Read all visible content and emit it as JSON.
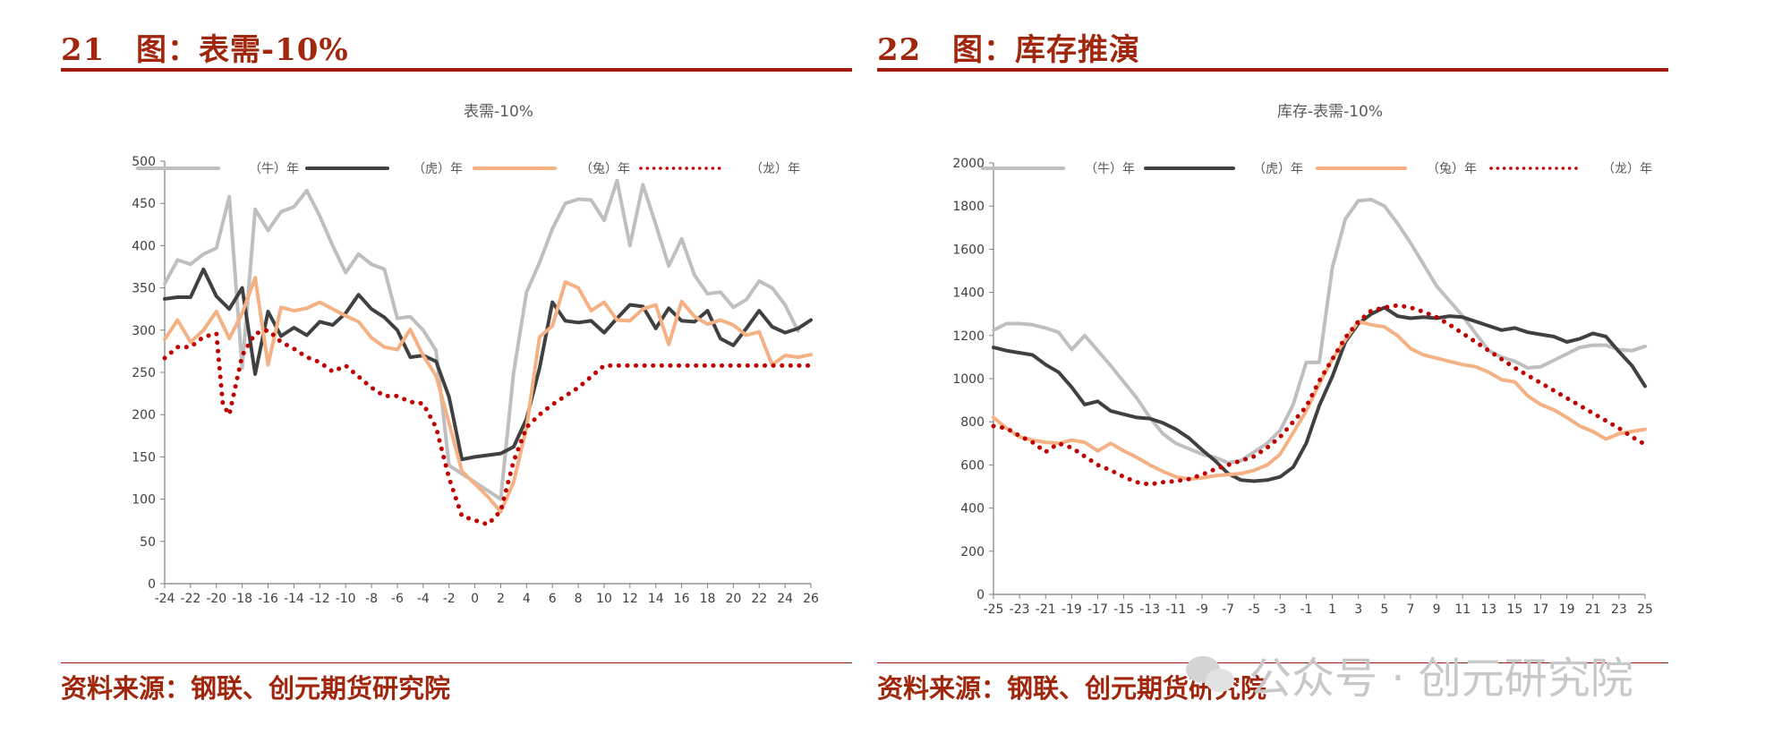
{
  "left": {
    "fig_number": "21",
    "fig_title": "图：表需-10%",
    "source": "资料来源：钢联、创元期货研究院"
  },
  "right": {
    "fig_number": "22",
    "fig_title": "图：库存推演",
    "source": "资料来源：钢联、创元期货研究院"
  },
  "watermark": "公众号 · 创元研究院",
  "chart_data": [
    {
      "type": "line",
      "title": "表需-10%",
      "xlabel": "",
      "ylabel": "",
      "ylim": [
        0,
        500
      ],
      "yticks": [
        0,
        50,
        100,
        150,
        200,
        250,
        300,
        350,
        400,
        450,
        500
      ],
      "xlim": [
        -24,
        26
      ],
      "xticks": [
        -24,
        -22,
        -20,
        -18,
        -16,
        -14,
        -12,
        -10,
        -8,
        -6,
        -4,
        -2,
        0,
        2,
        4,
        6,
        8,
        10,
        12,
        14,
        16,
        18,
        20,
        22,
        24,
        26
      ],
      "grid": false,
      "legend": "top",
      "series": [
        {
          "name": "（牛）年",
          "color": "#bfbfbf",
          "style": "solid",
          "x": [
            -24,
            -23,
            -22,
            -21,
            -20,
            -19,
            -18,
            -17,
            -16,
            -15,
            -14,
            -13,
            -12,
            -11,
            -10,
            -9,
            -8,
            -7,
            -6,
            -5,
            -4,
            -3,
            -2,
            2,
            3,
            4,
            5,
            6,
            7,
            8,
            9,
            10,
            11,
            12,
            13,
            14,
            15,
            16,
            17,
            18,
            19,
            20,
            21,
            22,
            23,
            24,
            25
          ],
          "values": [
            355,
            383,
            378,
            390,
            397,
            458,
            255,
            443,
            418,
            440,
            446,
            465,
            435,
            400,
            368,
            390,
            378,
            372,
            314,
            316,
            300,
            276,
            140,
            100,
            250,
            345,
            380,
            420,
            450,
            455,
            454,
            430,
            477,
            400,
            472,
            425,
            376,
            408,
            365,
            343,
            345,
            327,
            336,
            358,
            350,
            330,
            299
          ]
        },
        {
          "name": "（虎）年",
          "color": "#404040",
          "style": "solid",
          "x": [
            -24,
            -23,
            -22,
            -21,
            -20,
            -19,
            -18,
            -17,
            -16,
            -15,
            -14,
            -13,
            -12,
            -11,
            -10,
            -9,
            -8,
            -7,
            -6,
            -5,
            -4,
            -3,
            -2,
            -1,
            0,
            1,
            2,
            3,
            4,
            5,
            6,
            7,
            8,
            9,
            10,
            11,
            12,
            13,
            14,
            15,
            16,
            17,
            18,
            19,
            20,
            21,
            22,
            23,
            24,
            25,
            26
          ],
          "values": [
            337,
            339,
            339,
            372,
            340,
            325,
            350,
            248,
            322,
            293,
            303,
            294,
            310,
            306,
            320,
            342,
            325,
            315,
            300,
            268,
            270,
            263,
            221,
            147,
            150,
            152,
            154,
            162,
            195,
            255,
            333,
            311,
            309,
            311,
            297,
            314,
            330,
            328,
            302,
            326,
            311,
            310,
            323,
            290,
            282,
            302,
            323,
            304,
            297,
            302,
            312
          ]
        },
        {
          "name": "（兔）年",
          "color": "#f4b183",
          "style": "solid",
          "x": [
            -24,
            -23,
            -22,
            -21,
            -20,
            -19,
            -18,
            -17,
            -16,
            -15,
            -14,
            -13,
            -12,
            -11,
            -10,
            -9,
            -8,
            -7,
            -6,
            -5,
            -4,
            -3,
            -2,
            -1,
            0,
            1,
            2,
            3,
            4,
            5,
            6,
            7,
            8,
            9,
            10,
            11,
            12,
            13,
            14,
            15,
            16,
            17,
            18,
            19,
            20,
            21,
            22,
            23,
            24,
            25,
            26
          ],
          "values": [
            289,
            312,
            286,
            300,
            322,
            290,
            320,
            362,
            259,
            327,
            323,
            326,
            333,
            325,
            317,
            310,
            291,
            280,
            277,
            301,
            270,
            246,
            190,
            133,
            118,
            103,
            85,
            120,
            185,
            292,
            305,
            357,
            350,
            323,
            333,
            312,
            311,
            325,
            330,
            283,
            334,
            316,
            307,
            312,
            306,
            294,
            298,
            259,
            270,
            268,
            271
          ]
        },
        {
          "name": "（龙）年",
          "color": "#c00000",
          "style": "dotted",
          "x": [
            -24,
            -23,
            -22,
            -21,
            -20,
            -19.5,
            -19,
            -18,
            -17,
            -16,
            -15,
            -14,
            -13,
            -12,
            -11,
            -10,
            -9,
            -8,
            -7,
            -6,
            -5,
            -4,
            -3,
            -2,
            -1,
            0,
            1,
            2,
            3,
            4,
            5,
            6,
            7,
            8,
            9,
            10,
            11,
            12,
            13,
            14,
            15,
            16,
            17,
            18,
            19,
            20,
            21,
            22,
            23,
            24,
            25,
            26
          ],
          "values": [
            267,
            280,
            280,
            292,
            296,
            212,
            200,
            270,
            296,
            300,
            286,
            278,
            268,
            262,
            251,
            258,
            245,
            232,
            222,
            222,
            215,
            213,
            185,
            125,
            80,
            75,
            70,
            86,
            145,
            185,
            200,
            212,
            222,
            232,
            245,
            258,
            258,
            258,
            258,
            258,
            258,
            258,
            258,
            258,
            258,
            258,
            258,
            258,
            258,
            258,
            258,
            258
          ]
        }
      ]
    },
    {
      "type": "line",
      "title": "库存-表需-10%",
      "xlabel": "",
      "ylabel": "",
      "ylim": [
        0,
        2000
      ],
      "yticks": [
        0,
        200,
        400,
        600,
        800,
        1000,
        1200,
        1400,
        1600,
        1800,
        2000
      ],
      "xlim": [
        -25,
        25
      ],
      "xticks": [
        -25,
        -23,
        -21,
        -19,
        -17,
        -15,
        -13,
        -11,
        -9,
        -7,
        -5,
        -3,
        -1,
        1,
        3,
        5,
        7,
        9,
        11,
        13,
        15,
        17,
        19,
        21,
        23,
        25
      ],
      "grid": false,
      "legend": "top",
      "series": [
        {
          "name": "（牛）年",
          "color": "#bfbfbf",
          "style": "solid",
          "x": [
            -25,
            -24,
            -23,
            -22,
            -21,
            -20,
            -19,
            -18,
            -17,
            -16,
            -15,
            -14,
            -13,
            -12,
            -11,
            -10,
            -9,
            -8,
            -7,
            -6,
            -5,
            -4,
            -3,
            -2,
            -1,
            0,
            1,
            2,
            3,
            4,
            5,
            6,
            7,
            8,
            9,
            10,
            11,
            12,
            13,
            14,
            15,
            16,
            17,
            18,
            19,
            20,
            21,
            22,
            23,
            24,
            25
          ],
          "values": [
            1225,
            1255,
            1255,
            1250,
            1235,
            1215,
            1135,
            1200,
            1130,
            1060,
            985,
            910,
            820,
            745,
            700,
            675,
            650,
            635,
            610,
            620,
            660,
            700,
            760,
            880,
            1075,
            1075,
            1515,
            1740,
            1825,
            1830,
            1800,
            1720,
            1630,
            1530,
            1430,
            1360,
            1290,
            1210,
            1130,
            1100,
            1080,
            1050,
            1055,
            1085,
            1115,
            1145,
            1155,
            1155,
            1135,
            1130,
            1150
          ]
        },
        {
          "name": "（虎）年",
          "color": "#404040",
          "style": "solid",
          "x": [
            -25,
            -24,
            -23,
            -22,
            -21,
            -20,
            -19,
            -18,
            -17,
            -16,
            -15,
            -14,
            -13,
            -12,
            -11,
            -10,
            -9,
            -8,
            -7,
            -6,
            -5,
            -4,
            -3,
            -2,
            -1,
            0,
            1,
            2,
            3,
            4,
            5,
            6,
            7,
            8,
            9,
            10,
            11,
            12,
            13,
            14,
            15,
            16,
            17,
            18,
            19,
            20,
            21,
            22,
            23,
            24,
            25
          ],
          "values": [
            1145,
            1130,
            1120,
            1110,
            1065,
            1030,
            960,
            880,
            895,
            850,
            835,
            820,
            815,
            795,
            765,
            725,
            670,
            620,
            560,
            530,
            525,
            530,
            545,
            590,
            700,
            875,
            1010,
            1170,
            1255,
            1300,
            1330,
            1290,
            1280,
            1285,
            1280,
            1290,
            1285,
            1265,
            1245,
            1225,
            1235,
            1215,
            1205,
            1195,
            1170,
            1185,
            1210,
            1195,
            1125,
            1060,
            965
          ]
        },
        {
          "name": "（兔）年",
          "color": "#f4b183",
          "style": "solid",
          "x": [
            -25,
            -24,
            -23,
            -22,
            -21,
            -20,
            -19,
            -18,
            -17,
            -16,
            -15,
            -14,
            -13,
            -12,
            -11,
            -10,
            -9,
            -8,
            -7,
            -6,
            -5,
            -4,
            -3,
            -2,
            -1,
            0,
            1,
            2,
            3,
            4,
            5,
            6,
            7,
            8,
            9,
            10,
            11,
            12,
            13,
            14,
            15,
            16,
            17,
            18,
            19,
            20,
            21,
            22,
            23,
            24,
            25
          ],
          "values": [
            820,
            770,
            730,
            715,
            705,
            700,
            715,
            705,
            665,
            700,
            665,
            635,
            600,
            570,
            545,
            535,
            540,
            550,
            555,
            560,
            575,
            600,
            650,
            750,
            850,
            975,
            1090,
            1180,
            1265,
            1250,
            1240,
            1200,
            1140,
            1110,
            1095,
            1080,
            1065,
            1055,
            1030,
            995,
            985,
            920,
            880,
            855,
            820,
            780,
            755,
            720,
            745,
            755,
            765
          ]
        },
        {
          "name": "（龙）年",
          "color": "#c00000",
          "style": "dotted",
          "x": [
            -25,
            -24,
            -23,
            -22,
            -21,
            -20,
            -19,
            -18,
            -17,
            -16,
            -15,
            -14,
            -13,
            -12,
            -11,
            -10,
            -9,
            -8,
            -7,
            -6,
            -5,
            -4,
            -3,
            -2,
            -1,
            0,
            1,
            2,
            3,
            4,
            5,
            6,
            7,
            8,
            9,
            10,
            11,
            12,
            13,
            14,
            15,
            16,
            17,
            18,
            19,
            20,
            21,
            22,
            23,
            24,
            25
          ],
          "values": [
            780,
            770,
            735,
            705,
            660,
            700,
            680,
            640,
            600,
            575,
            545,
            520,
            510,
            520,
            525,
            535,
            555,
            580,
            600,
            620,
            640,
            680,
            730,
            800,
            870,
            990,
            1090,
            1190,
            1265,
            1315,
            1330,
            1340,
            1330,
            1310,
            1285,
            1250,
            1210,
            1170,
            1130,
            1090,
            1050,
            1015,
            980,
            945,
            910,
            875,
            840,
            805,
            770,
            730,
            695
          ]
        }
      ]
    }
  ]
}
